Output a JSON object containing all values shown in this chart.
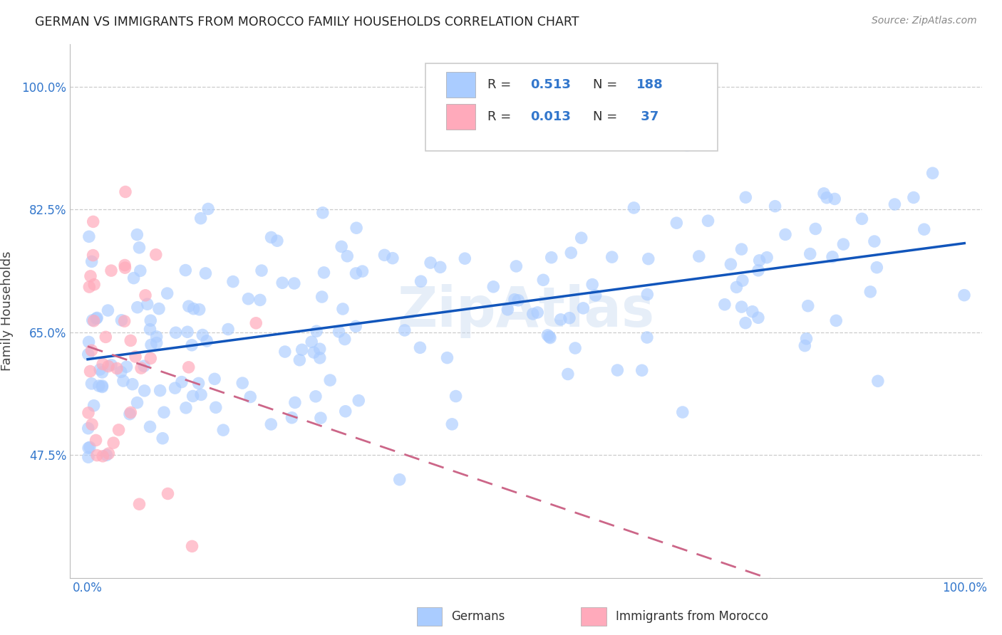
{
  "title": "GERMAN VS IMMIGRANTS FROM MOROCCO FAMILY HOUSEHOLDS CORRELATION CHART",
  "source": "Source: ZipAtlas.com",
  "ylabel": "Family Households",
  "blue_color": "#aaccff",
  "pink_color": "#ffaabb",
  "blue_line_color": "#1155bb",
  "pink_line_color": "#cc6688",
  "watermark": "ZipAtlas",
  "R_german": 0.513,
  "N_german": 188,
  "R_morocco": 0.013,
  "N_morocco": 37,
  "yticks": [
    0.475,
    0.65,
    0.825,
    1.0
  ],
  "ytick_labels": [
    "47.5%",
    "65.0%",
    "82.5%",
    "100.0%"
  ],
  "xlim": [
    -0.02,
    1.02
  ],
  "ylim": [
    0.3,
    1.06
  ],
  "seed_german": 42,
  "seed_morocco": 99
}
